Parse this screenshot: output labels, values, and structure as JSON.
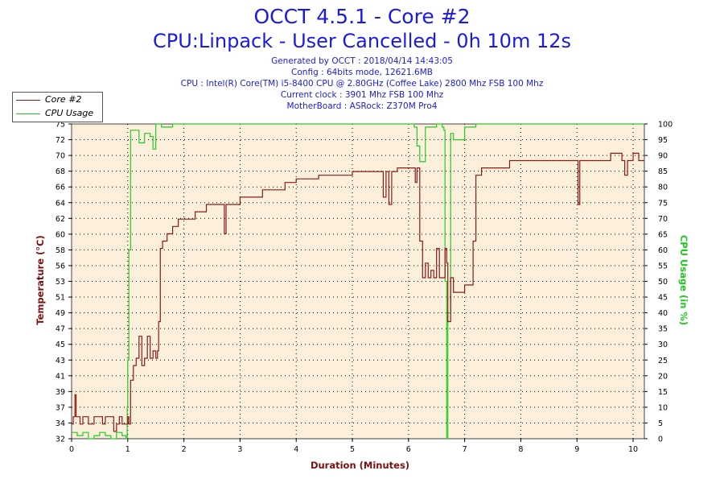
{
  "header": {
    "title": "OCCT 4.5.1 - Core #2",
    "subtitle": "CPU:Linpack - User Cancelled - 0h 10m 12s",
    "info_lines": [
      "Generated by OCCT : 2018/04/14 14:43:05",
      "Config : 64bits mode, 12621.6MB",
      "CPU : Intel(R) Core(TM) i5-8400 CPU @ 2.80GHz (Coffee Lake) 2800 Mhz FSB 100 Mhz",
      "Current clock : 3901 Mhz FSB 100 Mhz",
      "MotherBoard : ASRock: Z370M Pro4"
    ]
  },
  "colors": {
    "plot_background": "#fcf0dc",
    "core_series": "#8b1a1a",
    "usage_series": "#22cc22",
    "title": "#1a1ae6",
    "left_axis": "#7a1010",
    "right_axis": "#22c822"
  },
  "chart_data": {
    "type": "line",
    "title": "OCCT 4.5.1 - Core #2",
    "xlabel": "Duration (Minutes)",
    "ylabel": "Temperature (°C)",
    "y2label": "CPU Usage (in %)",
    "xlim": [
      0,
      10.2
    ],
    "ylim": [
      32,
      75
    ],
    "y2lim": [
      0,
      100
    ],
    "grid": true,
    "legend_position": "top-left",
    "x_ticks": [
      0,
      1,
      2,
      3,
      4,
      5,
      6,
      7,
      8,
      9,
      10
    ],
    "y_ticks": [
      32,
      34,
      37,
      39,
      41,
      43,
      45,
      47,
      49,
      51,
      53,
      56,
      58,
      60,
      62,
      64,
      66,
      68,
      70,
      72,
      75
    ],
    "y_tick_labels": [
      "32",
      "34",
      "37",
      "39",
      "41",
      "43",
      "45",
      "47",
      "49",
      "51",
      "53",
      "56",
      "58",
      "60",
      "62",
      "64",
      "66",
      "68",
      "70",
      "72",
      "75"
    ],
    "y2_ticks": [
      0,
      5,
      10,
      15,
      20,
      25,
      30,
      35,
      40,
      45,
      50,
      55,
      60,
      65,
      70,
      75,
      80,
      85,
      90,
      95,
      100
    ],
    "series": [
      {
        "name": "Core #2",
        "axis": "left",
        "x": [
          0,
          0.03,
          0.06,
          0.08,
          0.1,
          0.15,
          0.2,
          0.3,
          0.4,
          0.5,
          0.55,
          0.6,
          0.7,
          0.75,
          0.8,
          0.85,
          0.9,
          0.95,
          1.0,
          1.02,
          1.05,
          1.1,
          1.15,
          1.2,
          1.25,
          1.3,
          1.35,
          1.4,
          1.45,
          1.5,
          1.53,
          1.55,
          1.58,
          1.62,
          1.7,
          1.8,
          1.9,
          2.0,
          2.1,
          2.2,
          2.3,
          2.4,
          2.5,
          2.6,
          2.7,
          2.72,
          2.75,
          2.8,
          3.0,
          3.2,
          3.4,
          3.5,
          3.6,
          3.8,
          3.9,
          4.0,
          4.2,
          4.4,
          4.6,
          4.8,
          5.0,
          5.2,
          5.4,
          5.5,
          5.55,
          5.6,
          5.65,
          5.7,
          5.8,
          5.9,
          6.0,
          6.1,
          6.12,
          6.15,
          6.2,
          6.25,
          6.3,
          6.35,
          6.4,
          6.45,
          6.5,
          6.55,
          6.6,
          6.65,
          6.68,
          6.7,
          6.75,
          6.8,
          6.85,
          6.9,
          7.0,
          7.1,
          7.15,
          7.2,
          7.25,
          7.3,
          7.4,
          7.6,
          7.8,
          8.0,
          8.2,
          8.4,
          8.6,
          8.8,
          9.0,
          9.02,
          9.05,
          9.2,
          9.4,
          9.6,
          9.8,
          9.85,
          9.9,
          10.0,
          10.1,
          10.2
        ],
        "values": [
          34,
          35,
          38,
          35,
          35,
          34,
          35,
          34,
          35,
          35,
          34,
          35,
          35,
          33,
          34,
          35,
          34,
          34,
          35,
          34,
          40,
          42,
          43,
          46,
          42,
          43,
          46,
          43,
          44,
          43,
          44,
          48,
          58,
          59,
          60,
          61,
          62,
          62,
          62,
          63,
          63,
          64,
          64,
          64,
          64,
          60,
          64,
          64,
          65,
          65,
          66,
          66,
          66,
          67,
          67,
          67.5,
          67.5,
          68,
          68,
          68,
          68.5,
          68.5,
          68.5,
          68.5,
          65,
          68.5,
          64,
          68.5,
          69,
          69,
          69,
          69,
          67,
          69,
          59,
          54,
          56,
          54,
          55,
          54,
          58,
          54,
          54,
          58,
          56,
          48,
          54,
          52,
          52,
          52,
          53,
          53,
          59,
          68,
          68,
          69,
          69,
          69,
          70,
          70,
          70,
          70,
          70,
          70,
          70,
          64,
          70,
          70,
          70,
          71,
          70,
          68,
          70,
          71,
          70,
          70
        ]
      },
      {
        "name": "CPU Usage",
        "axis": "right",
        "x": [
          0,
          0.1,
          0.2,
          0.3,
          0.4,
          0.5,
          0.6,
          0.7,
          0.8,
          0.9,
          0.97,
          0.99,
          1.0,
          1.02,
          1.05,
          1.2,
          1.3,
          1.4,
          1.45,
          1.5,
          1.6,
          1.8,
          2.0,
          3.0,
          4.0,
          5.0,
          6.0,
          6.1,
          6.15,
          6.2,
          6.3,
          6.5,
          6.6,
          6.63,
          6.65,
          6.68,
          6.7,
          6.75,
          6.8,
          7.0,
          7.2,
          8.0,
          9.0,
          10.0,
          10.2
        ],
        "values": [
          2,
          1,
          2,
          0,
          1,
          2,
          1,
          0,
          2,
          1,
          0,
          10,
          25,
          60,
          98,
          94,
          97,
          96,
          92,
          100,
          99,
          100,
          100,
          100,
          100,
          100,
          100,
          99,
          93,
          88,
          99,
          100,
          99,
          98,
          50,
          0,
          40,
          97,
          95,
          99,
          100,
          100,
          100,
          100,
          100
        ]
      }
    ]
  }
}
